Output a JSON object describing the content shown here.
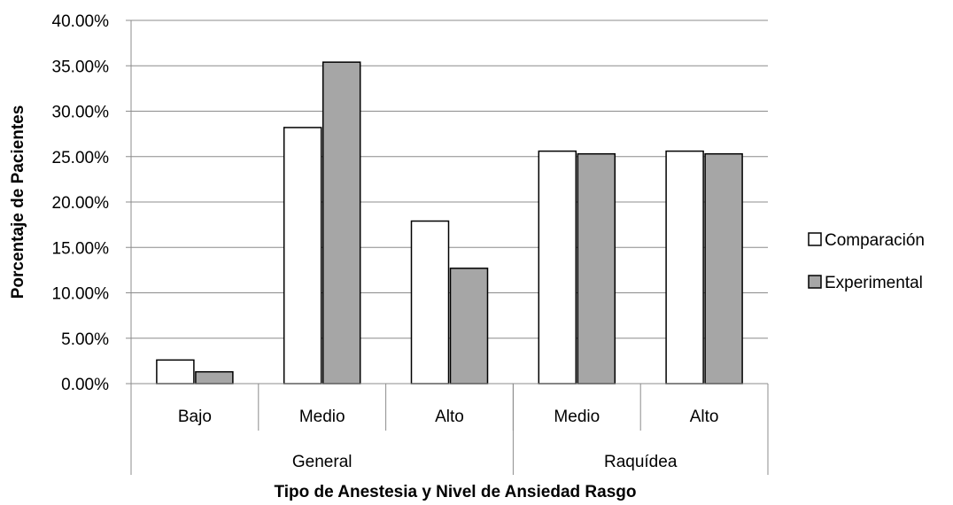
{
  "chart_data": {
    "type": "bar",
    "xlabel": "Tipo de Anestesia y Nivel de Ansiedad Rasgo",
    "ylabel": "Porcentaje de Pacientes",
    "ylim": [
      0,
      40
    ],
    "yticks": [
      "0.00%",
      "5.00%",
      "10.00%",
      "15.00%",
      "20.00%",
      "25.00%",
      "30.00%",
      "35.00%",
      "40.00%"
    ],
    "categories": [
      "Bajo",
      "Medio",
      "Alto",
      "Medio",
      "Alto"
    ],
    "groups": [
      {
        "label": "General",
        "count": 3
      },
      {
        "label": "Raquídea",
        "count": 2
      }
    ],
    "series": [
      {
        "name": "Comparación",
        "color": "#ffffff",
        "values": [
          2.6,
          28.2,
          17.9,
          25.6,
          25.6
        ]
      },
      {
        "name": "Experimental",
        "color": "#a6a6a6",
        "values": [
          1.3,
          35.4,
          12.7,
          25.3,
          25.3
        ]
      }
    ],
    "grid": true,
    "legend": "right"
  }
}
